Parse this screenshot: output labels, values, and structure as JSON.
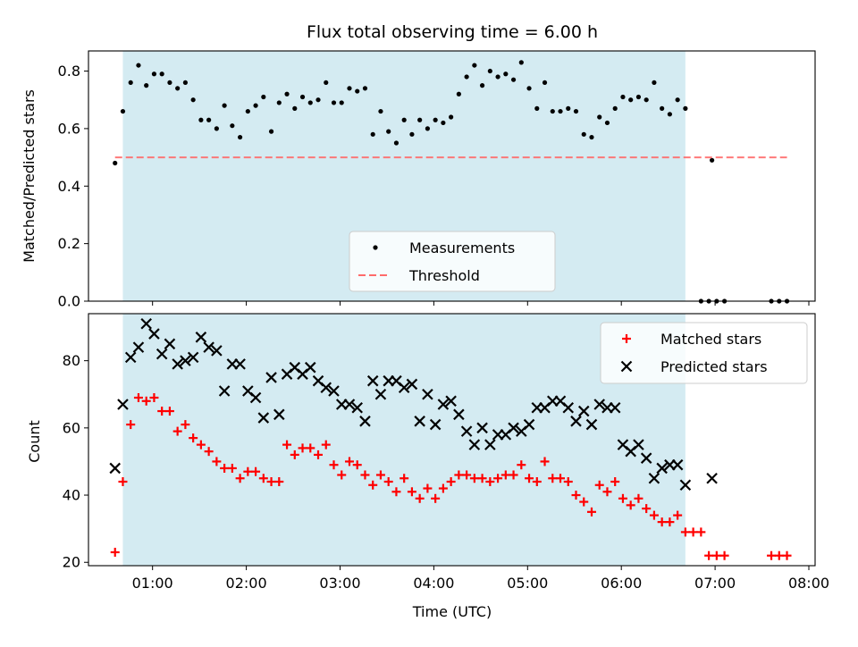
{
  "chart_data": [
    {
      "type": "scatter",
      "title": "Flux total observing time = 6.00 h",
      "xlabel": "",
      "ylabel": "Matched/Predicted stars",
      "xlim": [
        "00:19",
        "08:04"
      ],
      "ylim": [
        0,
        0.87
      ],
      "yticks": [
        0.0,
        0.2,
        0.4,
        0.6,
        0.8
      ],
      "ytick_labels": [
        "0.0",
        "0.2",
        "0.4",
        "0.6",
        "0.8"
      ],
      "shaded_interval": {
        "start": "00:41",
        "end": "06:41",
        "color": "#add8e6"
      },
      "legend": {
        "position": "lower-center",
        "entries": [
          "Measurements",
          "Threshold"
        ]
      },
      "series": [
        {
          "name": "Measurements",
          "marker": "dot",
          "color": "#000000",
          "x": [
            "00:36",
            "00:41",
            "00:46",
            "00:51",
            "00:56",
            "01:01",
            "01:06",
            "01:11",
            "01:16",
            "01:21",
            "01:26",
            "01:31",
            "01:36",
            "01:41",
            "01:46",
            "01:51",
            "01:56",
            "02:01",
            "02:06",
            "02:11",
            "02:16",
            "02:21",
            "02:26",
            "02:31",
            "02:36",
            "02:41",
            "02:46",
            "02:51",
            "02:56",
            "03:01",
            "03:06",
            "03:11",
            "03:16",
            "03:21",
            "03:26",
            "03:31",
            "03:36",
            "03:41",
            "03:46",
            "03:51",
            "03:56",
            "04:01",
            "04:06",
            "04:11",
            "04:16",
            "04:21",
            "04:26",
            "04:31",
            "04:36",
            "04:41",
            "04:46",
            "04:51",
            "04:56",
            "05:01",
            "05:06",
            "05:11",
            "05:16",
            "05:21",
            "05:26",
            "05:31",
            "05:36",
            "05:41",
            "05:46",
            "05:51",
            "05:56",
            "06:01",
            "06:06",
            "06:11",
            "06:16",
            "06:21",
            "06:26",
            "06:31",
            "06:36",
            "06:41",
            "06:51",
            "06:56",
            "06:58",
            "07:01",
            "07:06",
            "07:36",
            "07:41",
            "07:46"
          ],
          "y": [
            0.48,
            0.66,
            0.76,
            0.82,
            0.75,
            0.79,
            0.79,
            0.76,
            0.74,
            0.76,
            0.7,
            0.63,
            0.63,
            0.6,
            0.68,
            0.61,
            0.57,
            0.66,
            0.68,
            0.71,
            0.59,
            0.69,
            0.72,
            0.67,
            0.71,
            0.69,
            0.7,
            0.76,
            0.69,
            0.69,
            0.74,
            0.73,
            0.74,
            0.58,
            0.66,
            0.59,
            0.55,
            0.63,
            0.58,
            0.63,
            0.6,
            0.63,
            0.62,
            0.64,
            0.72,
            0.78,
            0.82,
            0.75,
            0.8,
            0.78,
            0.79,
            0.77,
            0.83,
            0.74,
            0.67,
            0.76,
            0.66,
            0.66,
            0.67,
            0.66,
            0.58,
            0.57,
            0.64,
            0.62,
            0.67,
            0.71,
            0.7,
            0.71,
            0.7,
            0.76,
            0.67,
            0.65,
            0.7,
            0.67,
            0.0,
            0.0,
            0.49,
            0.0,
            0.0,
            0.0,
            0.0,
            0.0
          ]
        },
        {
          "name": "Threshold",
          "type": "line",
          "style": "dashed",
          "color": "#ff6b6b",
          "x": [
            "00:36",
            "07:46"
          ],
          "y": [
            0.5,
            0.5
          ]
        }
      ]
    },
    {
      "type": "scatter",
      "title": "",
      "xlabel": "Time (UTC)",
      "ylabel": "Count",
      "xlim": [
        "00:19",
        "08:04"
      ],
      "ylim": [
        19,
        94
      ],
      "yticks": [
        20,
        40,
        60,
        80
      ],
      "ytick_labels": [
        "20",
        "40",
        "60",
        "80"
      ],
      "xtick_labels": [
        "01:00",
        "02:00",
        "03:00",
        "04:00",
        "05:00",
        "06:00",
        "07:00",
        "08:00"
      ],
      "shaded_interval": {
        "start": "00:41",
        "end": "06:41",
        "color": "#add8e6"
      },
      "legend": {
        "position": "top-right",
        "entries": [
          "Matched stars",
          "Predicted stars"
        ]
      },
      "series": [
        {
          "name": "Matched stars",
          "marker": "plus",
          "color": "#ff0000",
          "x": [
            "00:36",
            "00:41",
            "00:46",
            "00:51",
            "00:56",
            "01:01",
            "01:06",
            "01:11",
            "01:16",
            "01:21",
            "01:26",
            "01:31",
            "01:36",
            "01:41",
            "01:46",
            "01:51",
            "01:56",
            "02:01",
            "02:06",
            "02:11",
            "02:16",
            "02:21",
            "02:26",
            "02:31",
            "02:36",
            "02:41",
            "02:46",
            "02:51",
            "02:56",
            "03:01",
            "03:06",
            "03:11",
            "03:16",
            "03:21",
            "03:26",
            "03:31",
            "03:36",
            "03:41",
            "03:46",
            "03:51",
            "03:56",
            "04:01",
            "04:06",
            "04:11",
            "04:16",
            "04:21",
            "04:26",
            "04:31",
            "04:36",
            "04:41",
            "04:46",
            "04:51",
            "04:56",
            "05:01",
            "05:06",
            "05:11",
            "05:16",
            "05:21",
            "05:26",
            "05:31",
            "05:36",
            "05:41",
            "05:46",
            "05:51",
            "05:56",
            "06:01",
            "06:06",
            "06:11",
            "06:16",
            "06:21",
            "06:26",
            "06:31",
            "06:36",
            "06:41",
            "06:46",
            "06:51",
            "06:56",
            "07:01",
            "07:06",
            "07:36",
            "07:41",
            "07:46"
          ],
          "y": [
            23,
            44,
            61,
            69,
            68,
            69,
            65,
            65,
            59,
            61,
            57,
            55,
            53,
            50,
            48,
            48,
            45,
            47,
            47,
            45,
            44,
            44,
            55,
            52,
            54,
            54,
            52,
            55,
            49,
            46,
            50,
            49,
            46,
            43,
            46,
            44,
            41,
            45,
            41,
            39,
            42,
            39,
            42,
            44,
            46,
            46,
            45,
            45,
            44,
            45,
            46,
            46,
            49,
            45,
            44,
            50,
            45,
            45,
            44,
            40,
            38,
            35,
            43,
            41,
            44,
            39,
            37,
            39,
            36,
            34,
            32,
            32,
            34,
            29,
            29,
            29,
            22,
            22,
            22,
            22,
            22,
            22
          ]
        },
        {
          "name": "Predicted stars",
          "marker": "x",
          "color": "#000000",
          "x": [
            "00:36",
            "00:41",
            "00:46",
            "00:51",
            "00:56",
            "01:01",
            "01:06",
            "01:11",
            "01:16",
            "01:21",
            "01:26",
            "01:31",
            "01:36",
            "01:41",
            "01:46",
            "01:51",
            "01:56",
            "02:01",
            "02:06",
            "02:11",
            "02:16",
            "02:21",
            "02:26",
            "02:31",
            "02:36",
            "02:41",
            "02:46",
            "02:51",
            "02:56",
            "03:01",
            "03:06",
            "03:11",
            "03:16",
            "03:21",
            "03:26",
            "03:31",
            "03:36",
            "03:41",
            "03:46",
            "03:51",
            "03:56",
            "04:01",
            "04:06",
            "04:11",
            "04:16",
            "04:21",
            "04:26",
            "04:31",
            "04:36",
            "04:41",
            "04:46",
            "04:51",
            "04:56",
            "05:01",
            "05:06",
            "05:11",
            "05:16",
            "05:21",
            "05:26",
            "05:31",
            "05:36",
            "05:41",
            "05:46",
            "05:51",
            "05:56",
            "06:01",
            "06:06",
            "06:11",
            "06:16",
            "06:21",
            "06:26",
            "06:31",
            "06:36",
            "06:41",
            "06:58"
          ],
          "y": [
            48,
            67,
            81,
            84,
            91,
            88,
            82,
            85,
            79,
            80,
            81,
            87,
            84,
            83,
            71,
            79,
            79,
            71,
            69,
            63,
            75,
            64,
            76,
            78,
            76,
            78,
            74,
            72,
            71,
            67,
            67,
            66,
            62,
            74,
            70,
            74,
            74,
            72,
            73,
            62,
            70,
            61,
            67,
            68,
            64,
            59,
            55,
            60,
            55,
            58,
            58,
            60,
            59,
            61,
            66,
            66,
            68,
            68,
            66,
            62,
            65,
            61,
            67,
            66,
            66,
            55,
            53,
            55,
            51,
            45,
            48,
            49,
            49,
            43,
            45
          ]
        }
      ]
    }
  ]
}
